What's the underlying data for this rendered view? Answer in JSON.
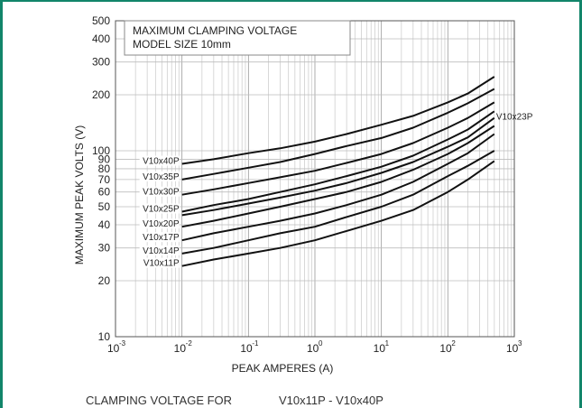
{
  "chart_data": {
    "type": "line",
    "title_lines": [
      "MAXIMUM CLAMPING VOLTAGE",
      "MODEL SIZE 10mm"
    ],
    "xlabel": "PEAK AMPERES (A)",
    "ylabel": "MAXIMUM PEAK VOLTS (V)",
    "x_scale": "log",
    "y_scale": "log",
    "xlim": [
      0.001,
      1000
    ],
    "ylim": [
      10,
      500
    ],
    "x_ticks": [
      {
        "base": "10",
        "exp": "-3"
      },
      {
        "base": "10",
        "exp": "-2"
      },
      {
        "base": "10",
        "exp": "-1"
      },
      {
        "base": "10",
        "exp": "0"
      },
      {
        "base": "10",
        "exp": "1"
      },
      {
        "base": "10",
        "exp": "2"
      },
      {
        "base": "10",
        "exp": "3"
      }
    ],
    "y_ticks": [
      10,
      20,
      30,
      40,
      50,
      60,
      70,
      80,
      90,
      100,
      200,
      300,
      400,
      500
    ],
    "grid": true,
    "x": [
      0.01,
      0.03,
      0.1,
      0.3,
      1,
      3,
      10,
      30,
      100,
      200,
      500
    ],
    "series": [
      {
        "name": "V10x40P",
        "values": [
          85,
          90,
          97,
          103,
          112,
          123,
          138,
          154,
          182,
          203,
          250
        ]
      },
      {
        "name": "V10x35P",
        "values": [
          70,
          75,
          81,
          87,
          96,
          106,
          117,
          133,
          160,
          180,
          215
        ]
      },
      {
        "name": "V10x30P",
        "values": [
          58,
          62,
          67,
          72,
          78,
          86,
          96,
          110,
          133,
          150,
          182
        ]
      },
      {
        "name": "V10x25P",
        "values": [
          47,
          51,
          55,
          60,
          66,
          73,
          82,
          94,
          115,
          130,
          163
        ]
      },
      {
        "name": "V10x23P",
        "values": [
          45,
          48,
          52,
          56,
          61,
          67,
          76,
          87,
          105,
          118,
          150
        ]
      },
      {
        "name": "V10x20P",
        "values": [
          39,
          42,
          46,
          50,
          55,
          60,
          68,
          79,
          96,
          110,
          136
        ]
      },
      {
        "name": "V10x17P",
        "values": [
          33,
          36,
          39,
          42,
          46,
          51,
          58,
          68,
          85,
          97,
          123
        ]
      },
      {
        "name": "V10x14P",
        "values": [
          28,
          30,
          33,
          36,
          39,
          44,
          50,
          58,
          73,
          83,
          100
        ]
      },
      {
        "name": "V10x11P",
        "values": [
          24,
          26,
          28,
          30,
          33,
          37,
          42,
          48,
          60,
          70,
          88
        ]
      }
    ]
  },
  "caption": {
    "left": "CLAMPING VOLTAGE FOR",
    "right": "V10x11P - V10x40P"
  }
}
